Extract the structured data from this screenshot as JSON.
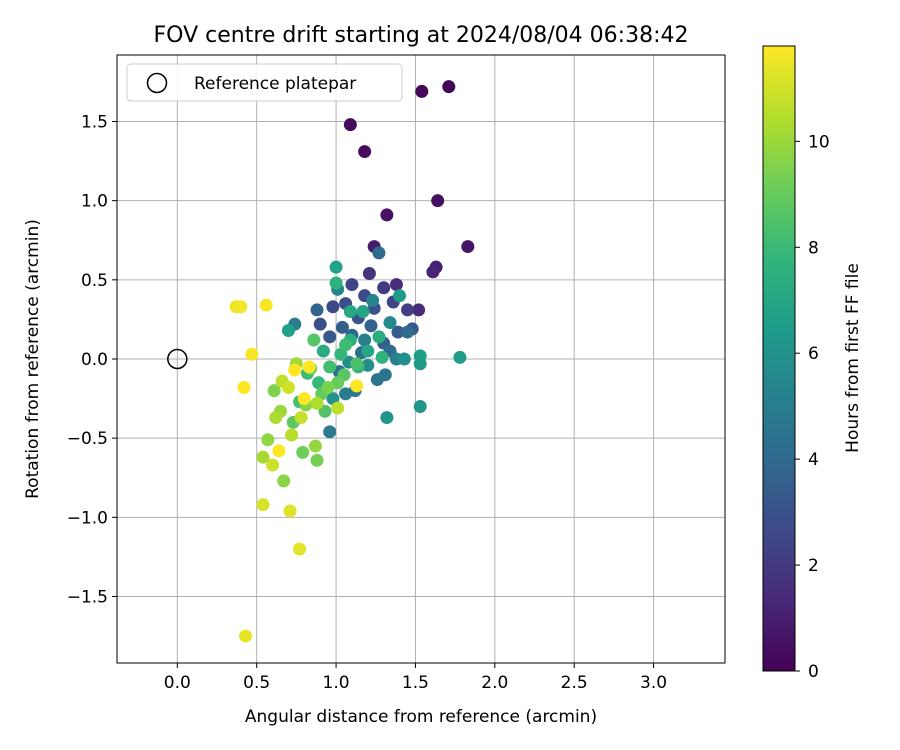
{
  "chart_data": {
    "type": "scatter",
    "title": "FOV centre drift starting at 2024/08/04 06:38:42",
    "xlabel": "Angular distance from reference (arcmin)",
    "ylabel": "Rotation from reference (arcmin)",
    "xlim": [
      -0.38,
      3.45
    ],
    "ylim": [
      -1.92,
      1.92
    ],
    "xticks": [
      0.0,
      0.5,
      1.0,
      1.5,
      2.0,
      2.5,
      3.0
    ],
    "xtick_labels": [
      "0.0",
      "0.5",
      "1.0",
      "1.5",
      "2.0",
      "2.5",
      "3.0"
    ],
    "yticks": [
      1.5,
      1.0,
      0.5,
      0.0,
      -0.5,
      -1.0,
      -1.5
    ],
    "ytick_labels": [
      "1.5",
      "1.0",
      "0.5",
      "0.0",
      "−0.5",
      "−1.0",
      "−1.5"
    ],
    "grid": true,
    "legend": {
      "position": "upper-left",
      "entries": [
        "Reference platepar"
      ]
    },
    "reference_point": {
      "x": 0.0,
      "y": 0.0,
      "label": "Reference platepar"
    },
    "colorbar": {
      "label": "Hours from first FF file",
      "range": [
        0,
        11.8
      ],
      "ticks": [
        0,
        2,
        4,
        6,
        8,
        10
      ],
      "tick_labels": [
        "0",
        "2",
        "4",
        "6",
        "8",
        "10"
      ],
      "colormap": "viridis",
      "colors": [
        "#440154",
        "#482878",
        "#3e4989",
        "#31688e",
        "#26828e",
        "#1f9e89",
        "#35b779",
        "#6ece58",
        "#b5de2b",
        "#fde725"
      ]
    },
    "points": [
      {
        "x": 1.71,
        "y": 1.72,
        "h": 0.1
      },
      {
        "x": 1.54,
        "y": 1.69,
        "h": 0.2
      },
      {
        "x": 1.09,
        "y": 1.48,
        "h": 0.3
      },
      {
        "x": 1.18,
        "y": 1.31,
        "h": 0.4
      },
      {
        "x": 1.64,
        "y": 1.0,
        "h": 0.5
      },
      {
        "x": 1.32,
        "y": 0.91,
        "h": 0.6
      },
      {
        "x": 1.83,
        "y": 0.71,
        "h": 0.7
      },
      {
        "x": 1.24,
        "y": 0.71,
        "h": 0.9
      },
      {
        "x": 1.63,
        "y": 0.58,
        "h": 1.0
      },
      {
        "x": 1.61,
        "y": 0.55,
        "h": 1.2
      },
      {
        "x": 1.52,
        "y": 0.31,
        "h": 1.4
      },
      {
        "x": 1.38,
        "y": 0.47,
        "h": 1.5
      },
      {
        "x": 1.21,
        "y": 0.54,
        "h": 1.8
      },
      {
        "x": 1.3,
        "y": 0.45,
        "h": 2.0
      },
      {
        "x": 1.45,
        "y": 0.31,
        "h": 2.2
      },
      {
        "x": 1.36,
        "y": 0.36,
        "h": 2.4
      },
      {
        "x": 1.1,
        "y": 0.47,
        "h": 2.5
      },
      {
        "x": 0.98,
        "y": 0.33,
        "h": 2.6
      },
      {
        "x": 1.18,
        "y": 0.4,
        "h": 2.7
      },
      {
        "x": 1.06,
        "y": 0.35,
        "h": 2.8
      },
      {
        "x": 0.9,
        "y": 0.22,
        "h": 2.9
      },
      {
        "x": 1.24,
        "y": 0.32,
        "h": 3.0
      },
      {
        "x": 1.14,
        "y": 0.26,
        "h": 3.1
      },
      {
        "x": 0.96,
        "y": 0.14,
        "h": 3.2
      },
      {
        "x": 1.48,
        "y": 0.19,
        "h": 3.3
      },
      {
        "x": 1.39,
        "y": 0.17,
        "h": 3.4
      },
      {
        "x": 1.04,
        "y": 0.2,
        "h": 3.5
      },
      {
        "x": 1.3,
        "y": 0.1,
        "h": 3.6
      },
      {
        "x": 1.22,
        "y": 0.21,
        "h": 3.7
      },
      {
        "x": 0.88,
        "y": 0.31,
        "h": 3.8
      },
      {
        "x": 1.1,
        "y": 0.15,
        "h": 3.9
      },
      {
        "x": 1.27,
        "y": 0.67,
        "h": 4.0
      },
      {
        "x": 1.45,
        "y": 0.17,
        "h": 4.1
      },
      {
        "x": 1.34,
        "y": 0.05,
        "h": 4.2
      },
      {
        "x": 1.16,
        "y": 0.04,
        "h": 4.3
      },
      {
        "x": 1.02,
        "y": -0.08,
        "h": 4.4
      },
      {
        "x": 1.26,
        "y": -0.13,
        "h": 4.5
      },
      {
        "x": 1.31,
        "y": -0.1,
        "h": 4.6
      },
      {
        "x": 1.12,
        "y": -0.2,
        "h": 4.7
      },
      {
        "x": 0.96,
        "y": -0.46,
        "h": 4.8
      },
      {
        "x": 1.06,
        "y": -0.22,
        "h": 4.9
      },
      {
        "x": 0.74,
        "y": 0.22,
        "h": 5.0
      },
      {
        "x": 1.18,
        "y": 0.12,
        "h": 5.1
      },
      {
        "x": 1.38,
        "y": 0.0,
        "h": 5.2
      },
      {
        "x": 1.23,
        "y": 0.37,
        "h": 5.3
      },
      {
        "x": 1.01,
        "y": 0.44,
        "h": 5.4
      },
      {
        "x": 1.34,
        "y": 0.23,
        "h": 5.6
      },
      {
        "x": 1.08,
        "y": -0.02,
        "h": 5.7
      },
      {
        "x": 1.2,
        "y": -0.04,
        "h": 5.8
      },
      {
        "x": 1.43,
        "y": 0.0,
        "h": 5.9
      },
      {
        "x": 0.98,
        "y": -0.25,
        "h": 6.0
      },
      {
        "x": 1.32,
        "y": -0.37,
        "h": 6.1
      },
      {
        "x": 1.53,
        "y": -0.3,
        "h": 6.2
      },
      {
        "x": 1.53,
        "y": -0.03,
        "h": 6.3
      },
      {
        "x": 1.4,
        "y": 0.4,
        "h": 6.4
      },
      {
        "x": 1.78,
        "y": 0.01,
        "h": 6.5
      },
      {
        "x": 1.53,
        "y": 0.02,
        "h": 6.6
      },
      {
        "x": 0.7,
        "y": 0.18,
        "h": 6.7
      },
      {
        "x": 1.0,
        "y": 0.58,
        "h": 6.8
      },
      {
        "x": 1.17,
        "y": 0.3,
        "h": 6.9
      },
      {
        "x": 1.2,
        "y": 0.05,
        "h": 7.0
      },
      {
        "x": 1.09,
        "y": 0.3,
        "h": 7.1
      },
      {
        "x": 0.92,
        "y": 0.05,
        "h": 7.2
      },
      {
        "x": 1.27,
        "y": 0.14,
        "h": 7.3
      },
      {
        "x": 1.09,
        "y": 0.12,
        "h": 7.4
      },
      {
        "x": 1.0,
        "y": 0.48,
        "h": 7.5
      },
      {
        "x": 1.29,
        "y": 0.01,
        "h": 7.6
      },
      {
        "x": 1.14,
        "y": -0.05,
        "h": 7.7
      },
      {
        "x": 1.03,
        "y": 0.03,
        "h": 7.8
      },
      {
        "x": 0.89,
        "y": -0.15,
        "h": 7.9
      },
      {
        "x": 0.82,
        "y": -0.09,
        "h": 8.0
      },
      {
        "x": 1.06,
        "y": 0.09,
        "h": 8.1
      },
      {
        "x": 0.96,
        "y": -0.05,
        "h": 8.2
      },
      {
        "x": 0.77,
        "y": -0.27,
        "h": 8.3
      },
      {
        "x": 1.13,
        "y": -0.03,
        "h": 8.4
      },
      {
        "x": 0.93,
        "y": -0.33,
        "h": 8.5
      },
      {
        "x": 0.86,
        "y": 0.12,
        "h": 8.6
      },
      {
        "x": 1.05,
        "y": -0.1,
        "h": 8.7
      },
      {
        "x": 0.73,
        "y": -0.4,
        "h": 8.8
      },
      {
        "x": 0.91,
        "y": -0.22,
        "h": 8.9
      },
      {
        "x": 1.01,
        "y": -0.15,
        "h": 9.0
      },
      {
        "x": 0.84,
        "y": -0.06,
        "h": 9.1
      },
      {
        "x": 0.79,
        "y": -0.59,
        "h": 9.2
      },
      {
        "x": 0.88,
        "y": -0.64,
        "h": 9.3
      },
      {
        "x": 0.95,
        "y": -0.18,
        "h": 9.4
      },
      {
        "x": 0.61,
        "y": -0.2,
        "h": 9.5
      },
      {
        "x": 0.81,
        "y": -0.29,
        "h": 9.6
      },
      {
        "x": 0.67,
        "y": -0.77,
        "h": 9.7
      },
      {
        "x": 0.57,
        "y": -0.51,
        "h": 9.8
      },
      {
        "x": 0.87,
        "y": -0.55,
        "h": 9.9
      },
      {
        "x": 0.65,
        "y": -0.33,
        "h": 10.0
      },
      {
        "x": 0.75,
        "y": -0.03,
        "h": 10.1
      },
      {
        "x": 0.54,
        "y": -0.62,
        "h": 10.2
      },
      {
        "x": 0.62,
        "y": -0.37,
        "h": 10.3
      },
      {
        "x": 0.88,
        "y": -0.28,
        "h": 10.4
      },
      {
        "x": 0.72,
        "y": -0.48,
        "h": 10.5
      },
      {
        "x": 1.01,
        "y": -0.31,
        "h": 10.6
      },
      {
        "x": 0.66,
        "y": -0.14,
        "h": 10.7
      },
      {
        "x": 0.78,
        "y": -0.37,
        "h": 10.8
      },
      {
        "x": 0.6,
        "y": -0.67,
        "h": 10.9
      },
      {
        "x": 0.7,
        "y": -0.18,
        "h": 11.0
      },
      {
        "x": 0.54,
        "y": -0.92,
        "h": 11.1
      },
      {
        "x": 0.71,
        "y": -0.96,
        "h": 11.2
      },
      {
        "x": 0.77,
        "y": -1.2,
        "h": 11.3
      },
      {
        "x": 0.43,
        "y": -1.75,
        "h": 11.4
      },
      {
        "x": 0.37,
        "y": 0.33,
        "h": 11.5
      },
      {
        "x": 0.4,
        "y": 0.33,
        "h": 11.6
      },
      {
        "x": 0.56,
        "y": 0.34,
        "h": 11.7
      },
      {
        "x": 0.47,
        "y": 0.03,
        "h": 11.7
      },
      {
        "x": 0.42,
        "y": -0.18,
        "h": 11.8
      },
      {
        "x": 1.13,
        "y": -0.17,
        "h": 11.8
      },
      {
        "x": 0.83,
        "y": -0.05,
        "h": 11.8
      },
      {
        "x": 0.74,
        "y": -0.07,
        "h": 11.8
      },
      {
        "x": 0.64,
        "y": -0.58,
        "h": 11.8
      },
      {
        "x": 0.8,
        "y": -0.25,
        "h": 11.8
      }
    ]
  }
}
